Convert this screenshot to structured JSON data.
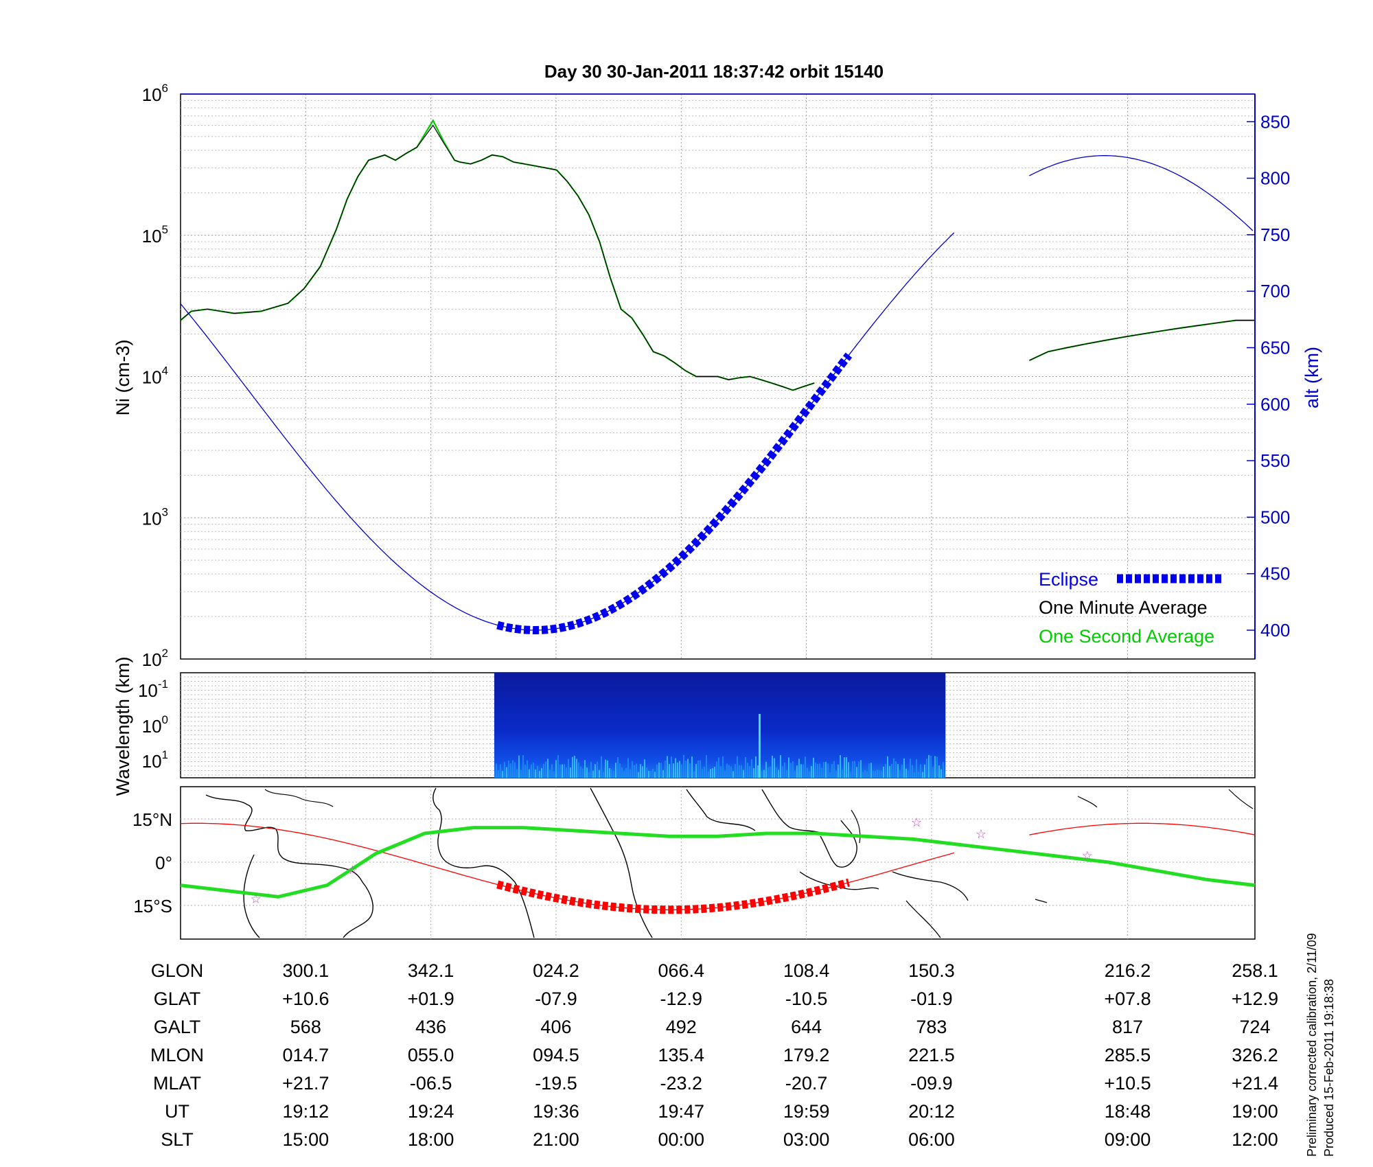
{
  "title": "Day 30  30-Jan-2011 18:37:42   orbit 15140",
  "colors": {
    "eclipse": "#0000ee",
    "one_minute": "#000000",
    "one_second": "#00cc00",
    "alt_axis": "#0000cc",
    "track_terminator": "#ff0000",
    "dip_equator": "#22dd22",
    "star": "#cc44cc"
  },
  "chart_data": [
    {
      "type": "line",
      "panel": "density_altitude",
      "x_samples": [
        0,
        0.01,
        0.025,
        0.05,
        0.075,
        0.1,
        0.115,
        0.13,
        0.145,
        0.155,
        0.165,
        0.175,
        0.19,
        0.2,
        0.21,
        0.22,
        0.235,
        0.245,
        0.255,
        0.26,
        0.27,
        0.28,
        0.29,
        0.3,
        0.31,
        0.32,
        0.33,
        0.34,
        0.35,
        0.36,
        0.37,
        0.38,
        0.39,
        0.4,
        0.41,
        0.42,
        0.43,
        0.44,
        0.45,
        0.46,
        0.47,
        0.48,
        0.49,
        0.5,
        0.51,
        0.52,
        0.53,
        0.54,
        0.55,
        0.56,
        0.57,
        0.58,
        0.59,
        0.6,
        0.61,
        0.62,
        0.63,
        0.64,
        0.65,
        0.66,
        0.67,
        0.68,
        0.69,
        0.7,
        0.71,
        0.72
      ],
      "y_label_left": "Ni (cm-3)",
      "y_axis_left": {
        "scale": "log",
        "range": [
          100,
          1000000
        ],
        "ticks": [
          "10^2",
          "10^3",
          "10^4",
          "10^5",
          "10^6"
        ]
      },
      "y_label_right": "alt (km)",
      "y_axis_right": {
        "range": [
          380,
          875
        ],
        "ticks": [
          400,
          450,
          500,
          550,
          600,
          650,
          700,
          750,
          800,
          850
        ]
      },
      "series": [
        {
          "name": "One Minute Average",
          "segments": [
            {
              "from": 0,
              "values": [
                25000,
                29000,
                30000,
                28000,
                29000,
                33000,
                42000,
                60000,
                110000,
                180000,
                260000,
                340000,
                370000,
                340000,
                380000,
                420000,
                600000,
                450000,
                340000,
                330000,
                320000,
                340000,
                370000,
                360000,
                330000,
                320000,
                310000,
                300000,
                290000,
                240000,
                190000,
                140000,
                90000,
                50000,
                30000,
                26000,
                20000,
                15000,
                14000,
                12500,
                11000,
                10000,
                10000,
                10000,
                9500,
                9800,
                10000,
                9500,
                9000,
                8500,
                8000,
                8500,
                9000
              ]
            },
            {
              "from": 0.79,
              "values": [
                13000,
                15000,
                16000,
                17000,
                18000,
                19000,
                20000,
                21000,
                22000,
                23000,
                24000,
                25000,
                25000
              ]
            }
          ]
        },
        {
          "name": "One Second Average",
          "segments": [
            {
              "from": 0,
              "values": [
                25000,
                29000,
                30000,
                28000,
                29000,
                33000,
                42000,
                60000,
                110000,
                180000,
                260000,
                340000,
                370000,
                340000,
                380000,
                420000,
                650000,
                460000,
                340000,
                330000,
                320000,
                340000,
                370000,
                360000,
                330000,
                320000,
                310000,
                300000,
                290000,
                240000,
                190000,
                140000,
                90000,
                50000,
                30000,
                26000,
                20000,
                15000,
                14000,
                12500,
                11000,
                10000,
                10000,
                10000,
                9500,
                9800,
                10000,
                9500,
                9000,
                8500,
                8000,
                8500,
                9000
              ]
            },
            {
              "from": 0.79,
              "values": [
                13000,
                15000,
                16000,
                17000,
                18000,
                19000,
                20000,
                21000,
                22000,
                23000,
                24000,
                25000,
                25000
              ]
            }
          ]
        },
        {
          "name": "alt (km)",
          "axis": "right",
          "segments": [
            {
              "from": 0,
              "to": 0.72,
              "minimum_alt": 400,
              "minimum_at": 0.33,
              "start_alt": 728,
              "end_alt": 772
            },
            {
              "from": 0.79,
              "to": 1.0,
              "maximum_alt": 820,
              "maximum_at": 0.86,
              "start_alt": 802,
              "end_alt": 720
            }
          ]
        },
        {
          "name": "Eclipse",
          "axis": "right",
          "from": 0.295,
          "to": 0.622
        }
      ],
      "legend": {
        "placement": "bottom-right",
        "entries": [
          "Eclipse",
          "One Minute Average",
          "One Second Average"
        ]
      }
    },
    {
      "type": "heatmap",
      "panel": "wavelength_spectrogram",
      "y_label": "Wavelength (km)",
      "y_ticks": [
        "10^-1",
        "10^0",
        "10^1"
      ],
      "data_extent": [
        0.292,
        0.712
      ]
    },
    {
      "type": "line",
      "panel": "ground_track_map",
      "y_ticks": [
        "15°N",
        "0°",
        "15°S"
      ],
      "series": [
        {
          "name": "track",
          "segments": [
            {
              "from": 0,
              "to": 0.72
            },
            {
              "from": 0.79,
              "to": 1.0
            }
          ]
        },
        {
          "name": "dip_equator",
          "values": [
            -8,
            -10,
            -12,
            -8,
            3,
            10,
            12,
            12,
            11,
            10,
            9,
            9,
            10,
            10,
            9,
            8,
            6,
            4,
            2,
            0,
            -3,
            -6,
            -8
          ]
        },
        {
          "name": "eclipse_track",
          "from": 0.295,
          "to": 0.622
        }
      ]
    }
  ],
  "table": {
    "labels": [
      "GLON",
      "GLAT",
      "GALT",
      "MLON",
      "MLAT",
      "UT",
      "SLT"
    ],
    "columns": [
      [
        "300.1",
        "+10.6",
        "568",
        "014.7",
        "+21.7",
        "19:12",
        "15:00"
      ],
      [
        "342.1",
        "+01.9",
        "436",
        "055.0",
        "-06.5",
        "19:24",
        "18:00"
      ],
      [
        "024.2",
        "-07.9",
        "406",
        "094.5",
        "-19.5",
        "19:36",
        "21:00"
      ],
      [
        "066.4",
        "-12.9",
        "492",
        "135.4",
        "-23.2",
        "19:47",
        "00:00"
      ],
      [
        "108.4",
        "-10.5",
        "644",
        "179.2",
        "-20.7",
        "19:59",
        "03:00"
      ],
      [
        "150.3",
        "-01.9",
        "783",
        "221.5",
        "-09.9",
        "20:12",
        "06:00"
      ],
      [
        "216.2",
        "+07.8",
        "817",
        "285.5",
        "+10.5",
        "18:48",
        "09:00"
      ],
      [
        "258.1",
        "+12.9",
        "724",
        "326.2",
        "+21.4",
        "19:00",
        "12:00"
      ]
    ]
  },
  "footnote": {
    "line1": "Preliminary corrected calibration, 2/11/09",
    "line2": "Produced 15-Feb-2011 19:18:38"
  }
}
